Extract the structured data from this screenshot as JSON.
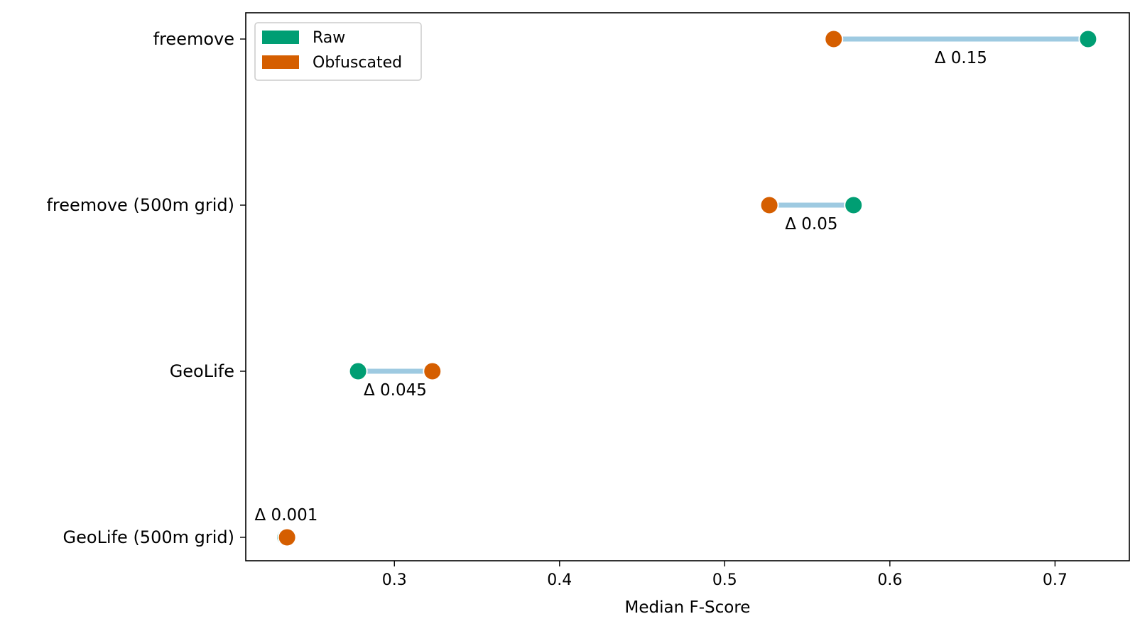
{
  "chart_data": {
    "type": "dumbbell",
    "xlabel": "Median F-Score",
    "xlim": [
      0.21,
      0.745
    ],
    "xticks": [
      0.3,
      0.4,
      0.5,
      0.6,
      0.7
    ],
    "xtick_labels": [
      "0.3",
      "0.4",
      "0.5",
      "0.6",
      "0.7"
    ],
    "categories": [
      "freemove",
      "freemove (500m grid)",
      "GeoLife",
      "GeoLife (500m grid)"
    ],
    "series": [
      {
        "name": "Raw",
        "color": "#009E73",
        "values": [
          0.72,
          0.578,
          0.278,
          0.234
        ]
      },
      {
        "name": "Obfuscated",
        "color": "#D55E00",
        "values": [
          0.566,
          0.527,
          0.323,
          0.235
        ]
      }
    ],
    "deltas": [
      {
        "category": "freemove",
        "label": "Δ 0.15",
        "position": "below"
      },
      {
        "category": "freemove (500m grid)",
        "label": "Δ 0.05",
        "position": "below"
      },
      {
        "category": "GeoLife",
        "label": "Δ 0.045",
        "position": "below"
      },
      {
        "category": "GeoLife (500m grid)",
        "label": "Δ 0.001",
        "position": "above"
      }
    ],
    "connector_color": "#9ECAE1",
    "legend": {
      "placement": "top-left"
    },
    "grid": false
  }
}
